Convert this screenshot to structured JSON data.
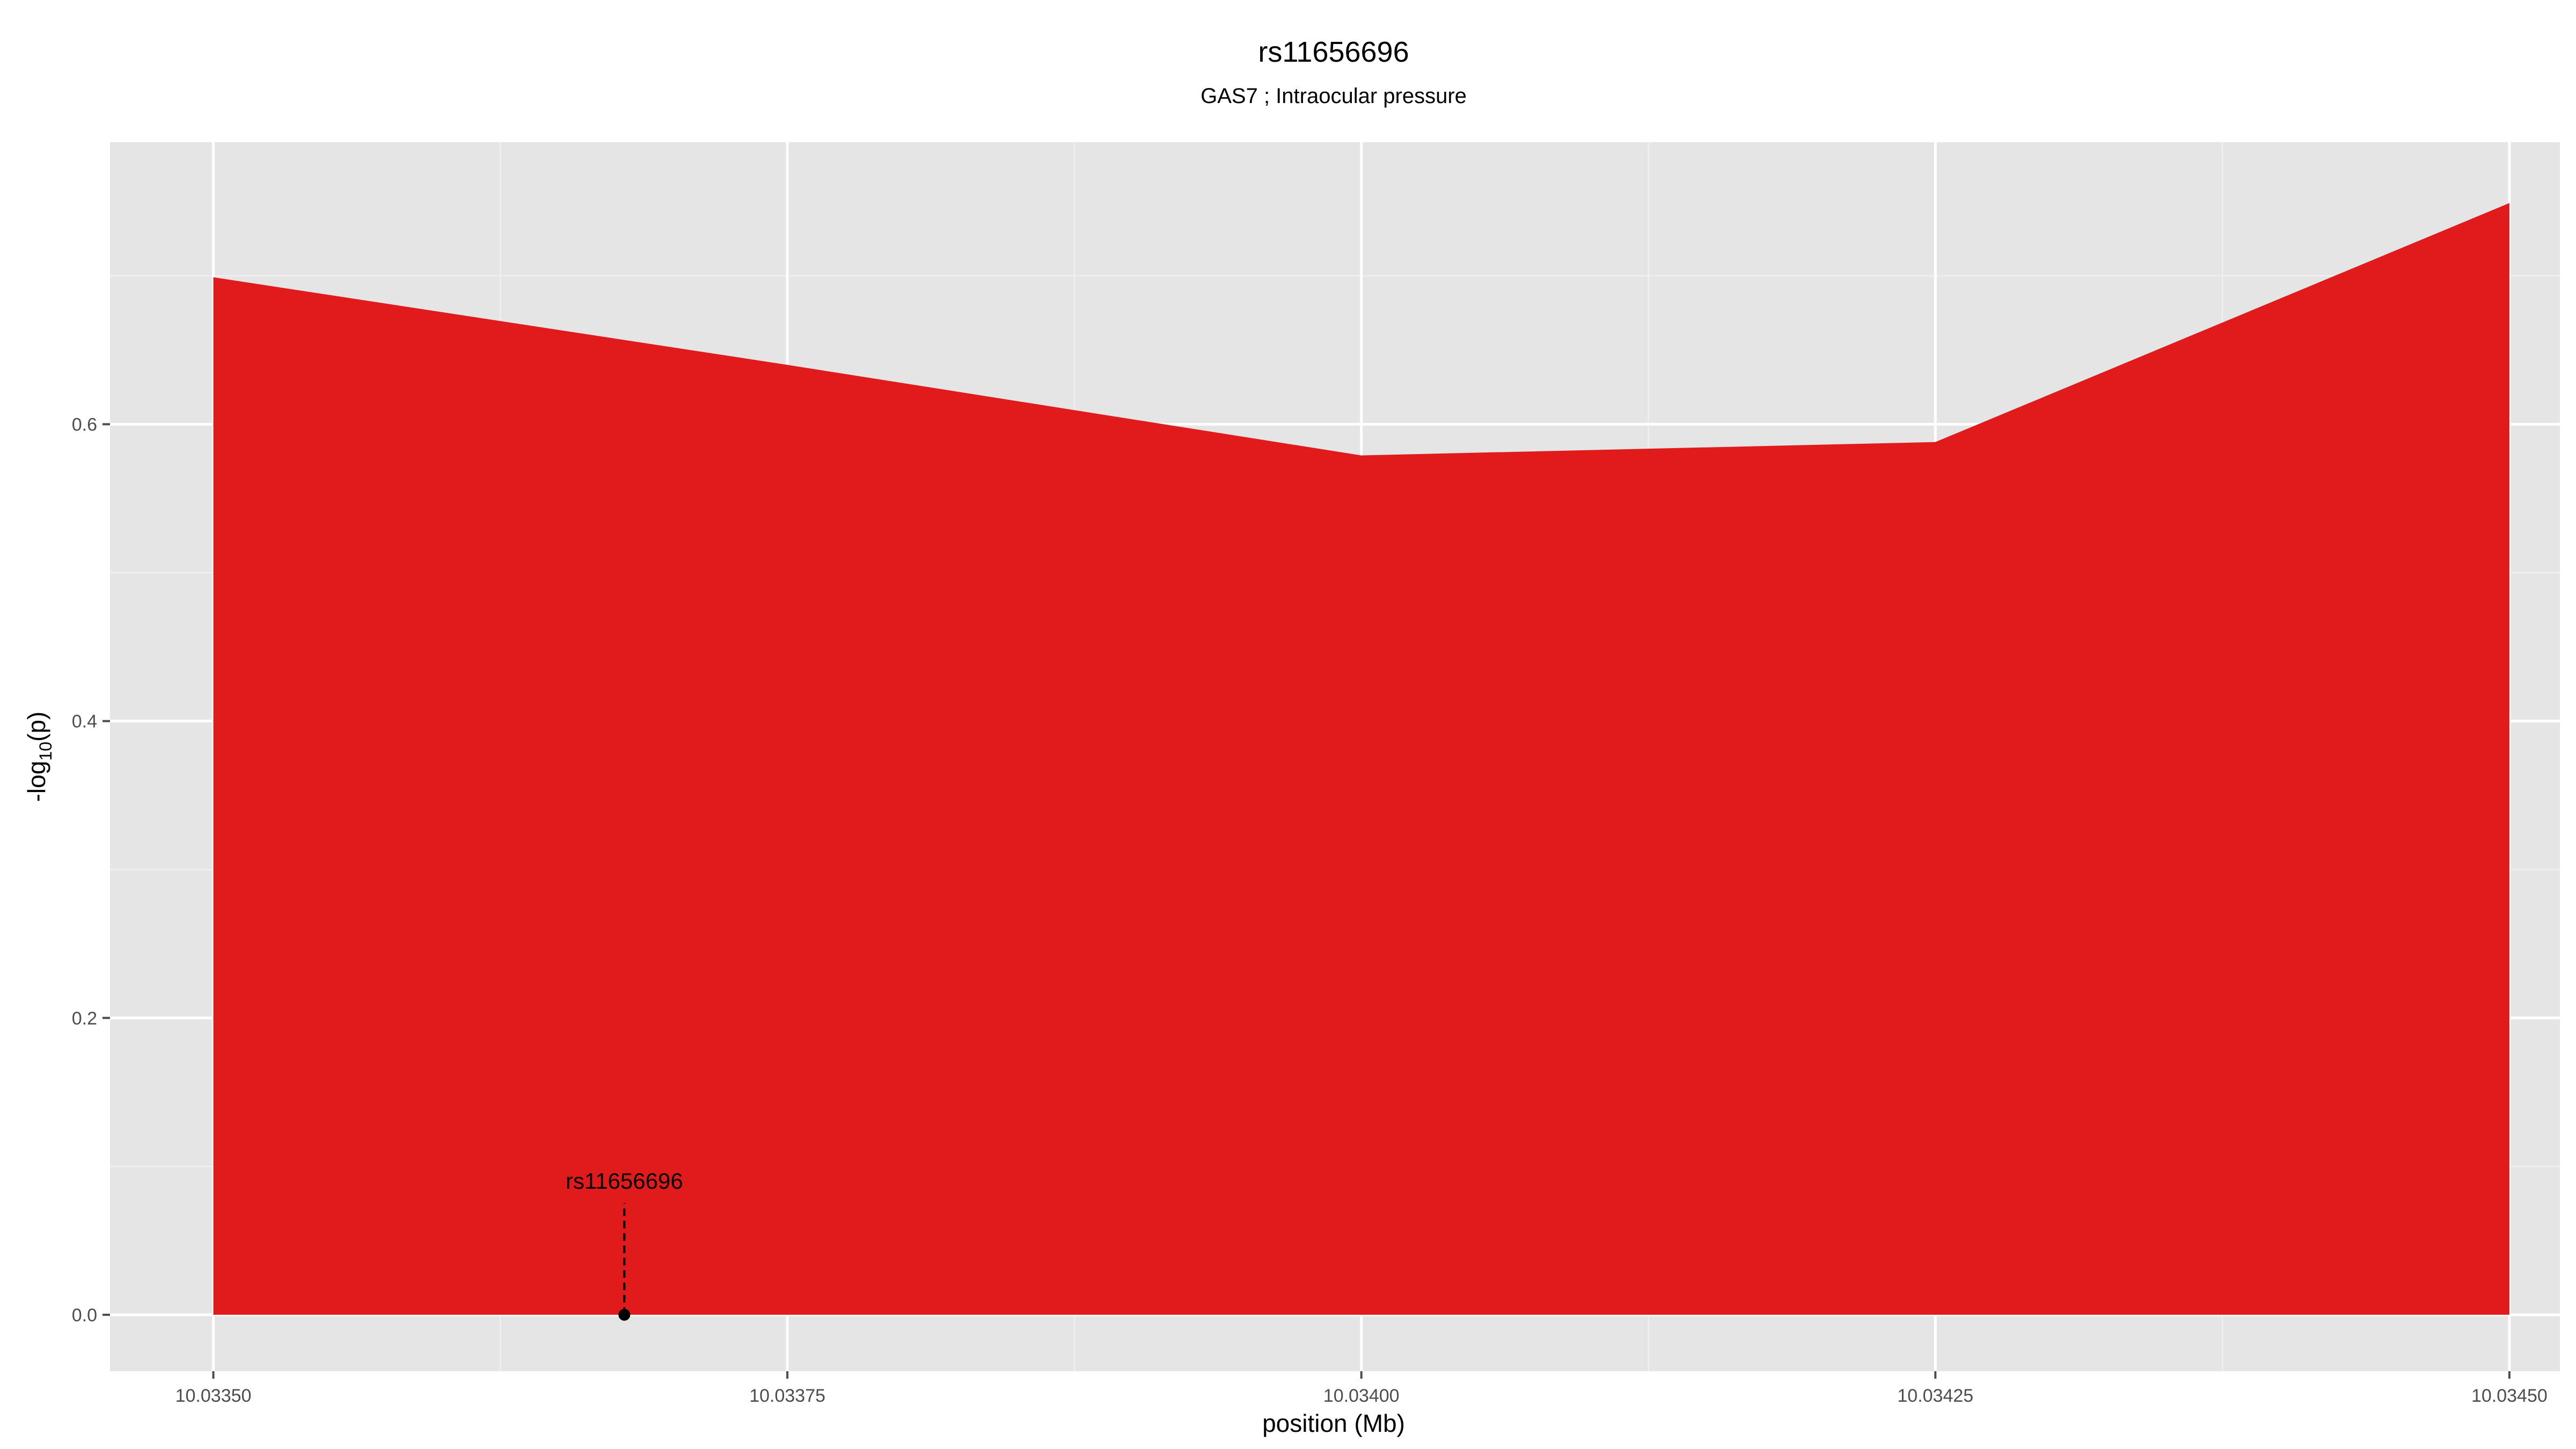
{
  "chart_data": {
    "type": "area",
    "title": "rs11656696",
    "subtitle": "GAS7 ; Intraocular pressure",
    "xlabel": "position (Mb)",
    "ylabel_main": "-log",
    "ylabel_sub": "10",
    "ylabel_tail": "(p)",
    "xlim": [
      10.033455,
      10.034522
    ],
    "ylim": [
      -0.038,
      0.79
    ],
    "x_ticks": [
      10.0335,
      10.03375,
      10.034,
      10.03425,
      10.0345
    ],
    "x_tick_labels": [
      "10.03350",
      "10.03375",
      "10.03400",
      "10.03425",
      "10.03450"
    ],
    "y_ticks": [
      0.0,
      0.2,
      0.4,
      0.6
    ],
    "y_tick_labels": [
      "0.0",
      "0.2",
      "0.4",
      "0.6"
    ],
    "grid": true,
    "series": [
      {
        "x": [
          10.0335,
          10.03375,
          10.034,
          10.03425,
          10.0345
        ],
        "y": [
          0.699,
          0.64,
          0.579,
          0.588,
          0.749
        ],
        "color": "#e11a1c"
      }
    ],
    "annotation": {
      "label": "rs11656696",
      "x": 10.033679,
      "y": 0.0
    },
    "colors": {
      "panel": "#e5e5e5",
      "grid_major": "#ffffff",
      "grid_minor": "#f2f2f2",
      "fill": "#e11a1c"
    }
  }
}
